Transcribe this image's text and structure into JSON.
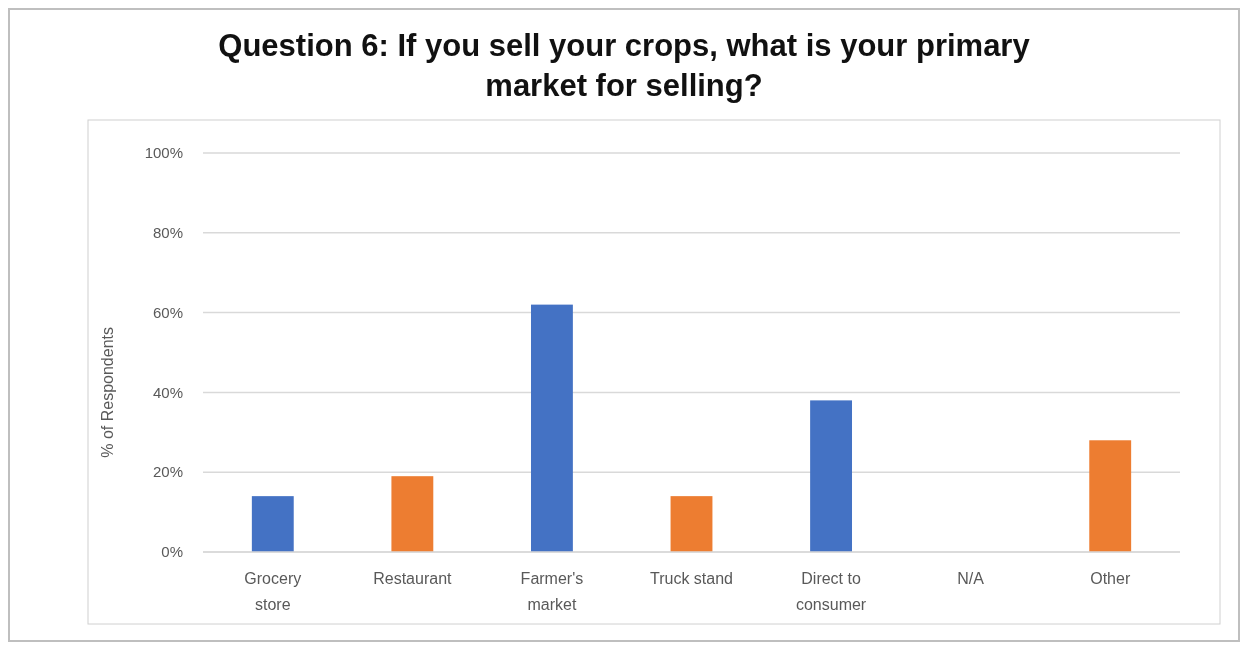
{
  "chart_data": {
    "type": "bar",
    "title": "Question 6: If you sell your crops, what is your primary market for selling?",
    "ylabel": "% of Respondents",
    "categories": [
      "Grocery store",
      "Restaurant",
      "Farmer's market",
      "Truck stand",
      "Direct to consumer",
      "N/A",
      "Other"
    ],
    "values": [
      14,
      19,
      62,
      14,
      38,
      0,
      28
    ],
    "colors": [
      "#4472c4",
      "#ed7d31",
      "#4472c4",
      "#ed7d31",
      "#4472c4",
      "#ed7d31",
      "#ed7d31"
    ],
    "ylim": [
      0,
      100
    ],
    "yticks": [
      {
        "value": 0,
        "label": "0%"
      },
      {
        "value": 20,
        "label": "20%"
      },
      {
        "value": 40,
        "label": "40%"
      },
      {
        "value": 60,
        "label": "60%"
      },
      {
        "value": 80,
        "label": "80%"
      },
      {
        "value": 100,
        "label": "100%"
      }
    ],
    "grid": "y"
  }
}
